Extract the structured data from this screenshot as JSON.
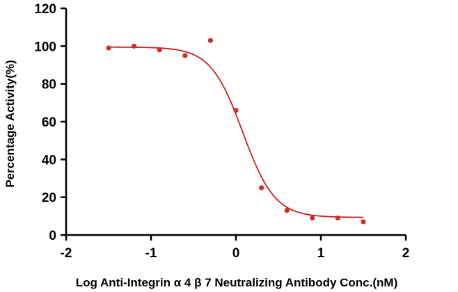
{
  "chart_data": {
    "type": "scatter",
    "title": "",
    "xlabel": "Log Anti-Integrin α 4 β 7 Neutralizing Antibody Conc.(nM)",
    "ylabel": "Percentage Activity(%)",
    "xlim": [
      -2,
      2
    ],
    "ylim": [
      0,
      120
    ],
    "xticks": [
      "-2",
      "-1",
      "0",
      "1",
      "2"
    ],
    "yticks": [
      "0",
      "20",
      "40",
      "60",
      "80",
      "100",
      "120"
    ],
    "grid": false,
    "legend": "none",
    "series": [
      {
        "marker": "circle",
        "color": "#d42a2a",
        "x": [
          -1.5,
          -1.2,
          -0.9,
          -0.6,
          -0.3,
          0.0,
          0.3,
          0.6,
          0.9,
          1.2,
          1.5
        ],
        "y": [
          99,
          100,
          98,
          95,
          103,
          66,
          25,
          13,
          9,
          9,
          7
        ]
      }
    ],
    "fit": {
      "model": "4PL",
      "color": "#c81e1e",
      "top": 99.5,
      "bottom": 9.3,
      "logEC50": 0.08,
      "hill": -2.3
    }
  }
}
